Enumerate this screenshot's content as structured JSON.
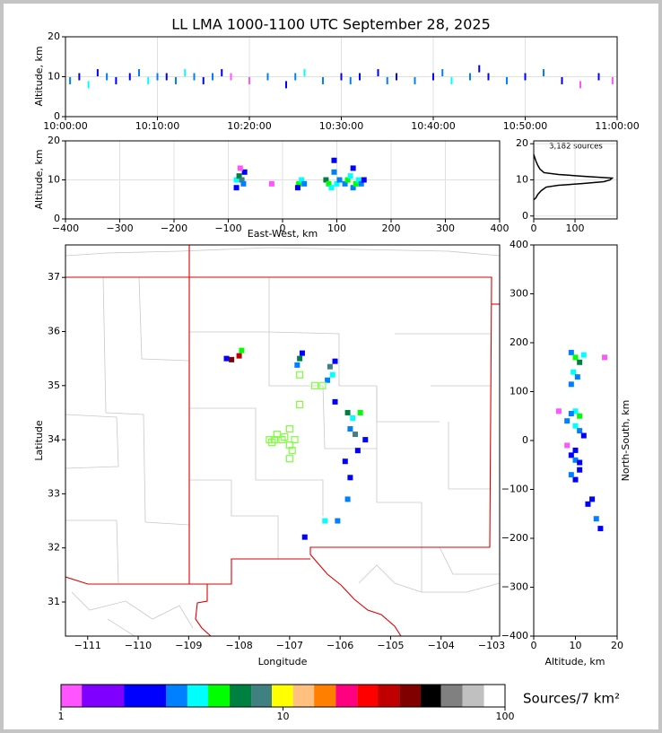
{
  "chart_data": [
    {
      "type": "scatter",
      "title": "LL LMA 1000-1100 UTC September 28, 2025",
      "ylabel": "Altitude, km",
      "grid": true,
      "xlim": [
        0,
        60
      ],
      "xticks": [
        {
          "value": 0,
          "label": "10:00:00"
        },
        {
          "value": 10,
          "label": "10:10:00"
        },
        {
          "value": 20,
          "label": "10:20:00"
        },
        {
          "value": 30,
          "label": "10:30:00"
        },
        {
          "value": 40,
          "label": "10:40:00"
        },
        {
          "value": 50,
          "label": "10:50:00"
        },
        {
          "value": 60,
          "label": "11:00:00"
        }
      ],
      "ylim": [
        0,
        20
      ],
      "yticks": [
        0,
        10,
        20
      ],
      "points": {
        "x": [
          0.5,
          1.5,
          2.5,
          3.5,
          4.5,
          5.5,
          7,
          8,
          9,
          10,
          11,
          12,
          13,
          14,
          15,
          16,
          17,
          18,
          20,
          22,
          24,
          25,
          26,
          28,
          30,
          31,
          32,
          34,
          35,
          36,
          38,
          40,
          41,
          42,
          44,
          45,
          46,
          48,
          50,
          52,
          54,
          56,
          58,
          59.5
        ],
        "y": [
          9,
          10,
          8,
          11,
          10,
          9,
          10,
          11,
          9,
          10,
          10,
          9,
          11,
          10,
          9,
          10,
          11,
          10,
          9,
          10,
          8,
          10,
          11,
          9,
          10,
          9,
          10,
          11,
          9,
          10,
          9,
          10,
          11,
          9,
          10,
          12,
          10,
          9,
          10,
          11,
          9,
          8,
          10,
          9
        ],
        "density": [
          3,
          2,
          4,
          2,
          3,
          2,
          2,
          3,
          4,
          3,
          2,
          3,
          4,
          3,
          2,
          3,
          2,
          1,
          1,
          3,
          2,
          3,
          4,
          3,
          2,
          3,
          2,
          2,
          3,
          2,
          3,
          2,
          3,
          4,
          3,
          2,
          2,
          3,
          2,
          3,
          2,
          1,
          2,
          1
        ]
      }
    },
    {
      "type": "scatter",
      "ylabel": "Altitude, km",
      "xlabel": "East-West, km",
      "grid": true,
      "xlim": [
        -400,
        400
      ],
      "xticks": [
        {
          "value": -400,
          "label": "−400"
        },
        {
          "value": -300,
          "label": "−300"
        },
        {
          "value": -200,
          "label": "−200"
        },
        {
          "value": -100,
          "label": "−100"
        },
        0,
        100,
        200,
        300,
        400
      ],
      "ylim": [
        0,
        20
      ],
      "yticks": [
        0,
        10,
        20
      ],
      "points": {
        "x": [
          -85,
          -80,
          -75,
          -72,
          -70,
          -85,
          -78,
          30,
          35,
          40,
          28,
          80,
          85,
          90,
          95,
          100,
          105,
          115,
          120,
          125,
          130,
          135,
          140,
          145,
          150,
          130,
          95,
          -20
        ],
        "y": [
          10,
          11,
          10,
          9,
          12,
          8,
          13,
          9,
          10,
          9,
          8,
          10,
          9,
          8,
          12,
          9,
          10,
          9,
          10,
          11,
          8,
          9,
          10,
          9,
          10,
          13,
          15,
          9
        ],
        "density": [
          4,
          6,
          8,
          3,
          2,
          2,
          1,
          5,
          4,
          3,
          2,
          6,
          5,
          4,
          3,
          4,
          3,
          3,
          5,
          4,
          3,
          5,
          4,
          3,
          2,
          2,
          2,
          1
        ]
      }
    },
    {
      "type": "line",
      "annotation": "3,182 sources",
      "grid": true,
      "color": "#000000",
      "xlim": [
        0,
        202
      ],
      "xticks": [
        0,
        100
      ],
      "ylim": [
        -0.8,
        20.8
      ],
      "yticks": [
        0,
        10,
        20
      ],
      "x": [
        0,
        5,
        10,
        18,
        30,
        60,
        120,
        170,
        185,
        190,
        120,
        60,
        25,
        15,
        10,
        6,
        3,
        0
      ],
      "y": [
        4.5,
        5,
        6,
        7,
        8,
        8.5,
        9,
        9.5,
        10,
        10.5,
        11,
        11.5,
        12,
        13,
        14,
        15,
        16,
        17
      ]
    },
    {
      "type": "map",
      "xlabel": "Longitude",
      "ylabel": "Latitude",
      "grid": false,
      "xlim": [
        -111.44,
        -102.84
      ],
      "xticks": [
        {
          "value": -111,
          "label": "−111"
        },
        {
          "value": -110,
          "label": "−110"
        },
        {
          "value": -109,
          "label": "−109"
        },
        {
          "value": -108,
          "label": "−108"
        },
        {
          "value": -107,
          "label": "−107"
        },
        {
          "value": -106,
          "label": "−106"
        },
        {
          "value": -105,
          "label": "−105"
        },
        {
          "value": -104,
          "label": "−104"
        },
        {
          "value": -103,
          "label": "−103"
        }
      ],
      "ylim": [
        30.37,
        37.6
      ],
      "yticks": [
        31,
        32,
        33,
        34,
        35,
        36,
        37
      ],
      "points": {
        "x": [
          -108.0,
          -108.15,
          -107.95,
          -108.25,
          -106.8,
          -106.85,
          -106.75,
          -106.2,
          -106.15,
          -106.25,
          -106.1,
          -105.85,
          -105.75,
          -105.6,
          -105.8,
          -105.7,
          -105.65,
          -105.9,
          -105.8,
          -105.85,
          -106.05,
          -106.3,
          -106.7,
          -106.1,
          -105.5
        ],
        "y": [
          35.55,
          35.48,
          35.65,
          35.5,
          35.5,
          35.38,
          35.6,
          35.35,
          35.2,
          35.1,
          35.45,
          34.5,
          34.4,
          34.5,
          34.2,
          34.1,
          33.8,
          33.6,
          33.3,
          32.9,
          32.5,
          32.5,
          32.2,
          34.7,
          34.0
        ],
        "density": [
          30,
          40,
          5,
          2,
          6,
          3,
          2,
          8,
          4,
          3,
          2,
          6,
          4,
          5,
          3,
          8,
          2,
          2,
          2,
          3,
          3,
          4,
          2,
          2,
          2
        ]
      },
      "stations": {
        "color": "#80ff40",
        "lon": [
          -106.5,
          -106.35,
          -106.8,
          -106.8,
          -107.0,
          -107.1,
          -107.15,
          -107.25,
          -107.3,
          -107.4,
          -107.35,
          -106.9,
          -107.0,
          -106.95,
          -107.0
        ],
        "lat": [
          35.0,
          35.0,
          35.2,
          34.65,
          34.2,
          34.05,
          34.0,
          34.1,
          34.0,
          34.0,
          33.95,
          34.0,
          33.9,
          33.8,
          33.65
        ]
      }
    },
    {
      "type": "scatter",
      "xlabel": "Altitude, km",
      "ylabel": "North-South, km",
      "grid": false,
      "xlim": [
        0,
        20
      ],
      "xticks": [
        0,
        10,
        20
      ],
      "ylim": [
        -400,
        400
      ],
      "yticks": [
        {
          "value": -400,
          "label": "−400"
        },
        {
          "value": -300,
          "label": "−300"
        },
        {
          "value": -200,
          "label": "−200"
        },
        {
          "value": -100,
          "label": "−100"
        },
        0,
        100,
        200,
        300,
        400
      ],
      "points": {
        "x": [
          9,
          10,
          11,
          12,
          9.5,
          10.5,
          9,
          10,
          11,
          8,
          9,
          10,
          11,
          12,
          9,
          10,
          11,
          10,
          9,
          10,
          11,
          14,
          15,
          16,
          13,
          6,
          8,
          17
        ],
        "y": [
          180,
          170,
          160,
          175,
          140,
          130,
          115,
          60,
          50,
          40,
          55,
          30,
          20,
          10,
          -30,
          -40,
          -60,
          -80,
          -70,
          -20,
          -45,
          -120,
          -160,
          -180,
          -130,
          60,
          -10,
          170
        ],
        "density": [
          3,
          5,
          6,
          4,
          4,
          3,
          3,
          4,
          5,
          3,
          3,
          4,
          3,
          2,
          2,
          3,
          2,
          2,
          3,
          2,
          2,
          2,
          3,
          2,
          2,
          1,
          1,
          1
        ]
      }
    },
    {
      "type": "colorbar",
      "label": "Sources/7 km²",
      "log": true,
      "xlim": [
        1,
        100
      ],
      "xticks": [
        1,
        10,
        100
      ],
      "bounds": [
        1,
        1.24,
        1.92,
        2.97,
        3.71,
        4.6,
        5.75,
        7.19,
        8.91,
        11.1,
        13.8,
        17.3,
        21.6,
        26.7,
        33.4,
        41.7,
        51.5,
        64.4,
        80.5,
        100
      ],
      "colors": [
        "#ff55ff",
        "#8000ff",
        "#0000ff",
        "#0080ff",
        "#00ffff",
        "#00ff00",
        "#008040",
        "#408080",
        "#ffff00",
        "#ffc080",
        "#ff8000",
        "#ff0080",
        "#ff0000",
        "#c00000",
        "#800000",
        "#000000",
        "#808080",
        "#c0c0c0",
        "#ffffff"
      ]
    }
  ]
}
